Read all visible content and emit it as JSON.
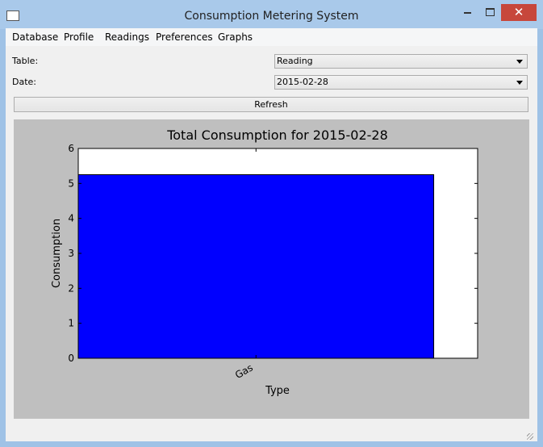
{
  "window": {
    "title": "Consumption Metering System"
  },
  "menu": [
    "Database",
    "Profile",
    "Readings",
    "Preferences",
    "Graphs"
  ],
  "form": {
    "table_label": "Table:",
    "table_value": "Reading",
    "date_label": "Date:",
    "date_value": "2015-02-28",
    "button": "Refresh"
  },
  "chart_data": {
    "type": "bar",
    "title": "Total Consumption for 2015-02-28",
    "x_label": "Type",
    "y_label": "Consumption",
    "categories": [
      "Gas"
    ],
    "values": [
      5.25
    ],
    "color": "#0000ff",
    "ylim": [
      0,
      6
    ],
    "yticks": [
      0,
      1,
      2,
      3,
      4,
      5,
      6
    ]
  }
}
